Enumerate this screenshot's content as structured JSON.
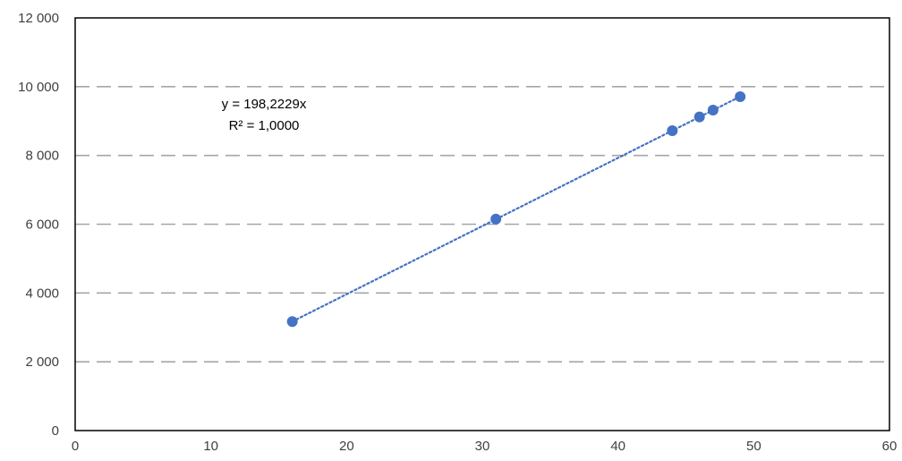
{
  "chart_data": {
    "type": "scatter",
    "title": "",
    "xlabel": "",
    "ylabel": "",
    "xlim": [
      0,
      60
    ],
    "ylim": [
      0,
      12000
    ],
    "x_ticks": [
      0,
      10,
      20,
      30,
      40,
      50,
      60
    ],
    "y_ticks": [
      0,
      2000,
      4000,
      6000,
      8000,
      10000,
      12000
    ],
    "x_tick_labels": [
      "0",
      "10",
      "20",
      "30",
      "40",
      "50",
      "60"
    ],
    "y_tick_labels": [
      "0",
      "2 000",
      "4 000",
      "6 000",
      "8 000",
      "10 000",
      "12 000"
    ],
    "grid": "horizontal-dashed",
    "legend": "none",
    "series": [
      {
        "x": [
          16,
          31,
          44,
          46,
          47,
          49
        ],
        "y": [
          3170,
          6150,
          8720,
          9120,
          9320,
          9710
        ]
      }
    ],
    "trendline": {
      "type": "linear-through-origin",
      "slope": 198.2229,
      "x_range": [
        16,
        49
      ],
      "equation_label": "y = 198,2229x",
      "r2_label": "R² = 1,0000"
    },
    "colors": {
      "marker": "#4472C4",
      "trendline": "#4472C4",
      "grid": "#A6A6A6",
      "axis": "#000000",
      "plot_border": "#000000",
      "tick_text": "#404040"
    }
  }
}
